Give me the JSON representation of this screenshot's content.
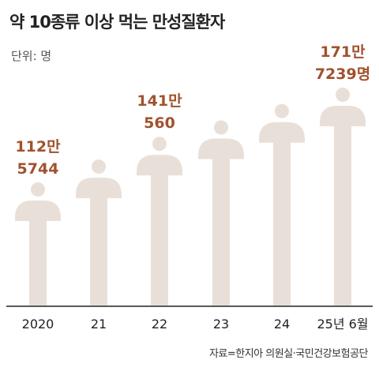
{
  "title": "약 10종류 이상 먹는 만성질환자",
  "unit": "단위: 명",
  "source": "자료=한지아 의원실·국민건강보험공단",
  "colors": {
    "figure": "#e8e0d8",
    "label": "#a0522d",
    "axis": "#222222"
  },
  "chart_data": {
    "type": "bar",
    "categories": [
      "2020",
      "21",
      "22",
      "23",
      "24",
      "25년 6월"
    ],
    "values": [
      1125744,
      null,
      1410560,
      null,
      null,
      1717239
    ],
    "labels": [
      [
        "112만",
        "5744"
      ],
      null,
      [
        "141만",
        "560"
      ],
      null,
      null,
      [
        "171만",
        "7239명"
      ]
    ],
    "marker": "person-figure",
    "grid": false
  }
}
